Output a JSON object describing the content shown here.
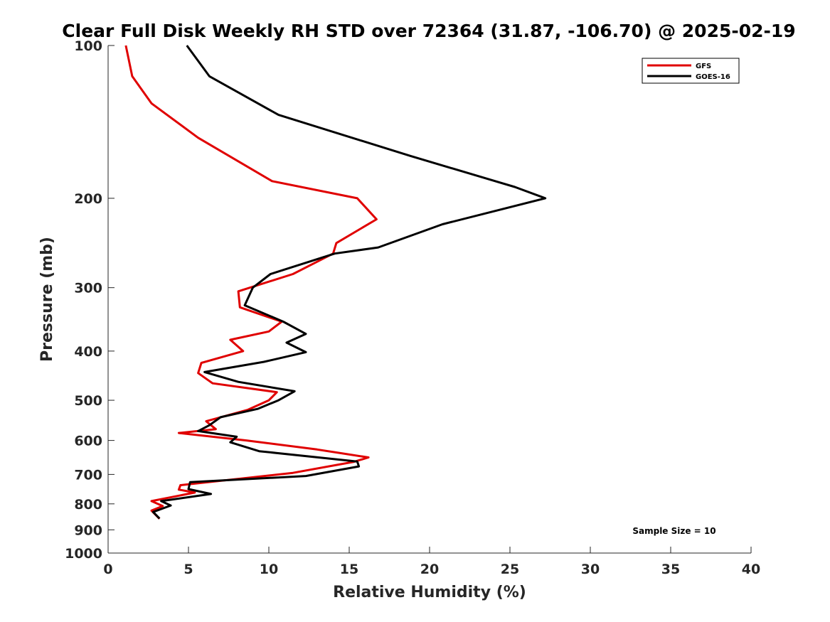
{
  "chart_data": {
    "type": "line",
    "title": "Clear Full Disk Weekly RH STD over 72364 (31.87, -106.70) @ 2025-02-19",
    "xlabel": "Relative Humidity (%)",
    "ylabel": "Pressure (mb)",
    "xlim": [
      0,
      40
    ],
    "ylim": [
      1000,
      100
    ],
    "y_scale": "log",
    "x_ticks": [
      "0",
      "5",
      "10",
      "15",
      "20",
      "25",
      "30",
      "35",
      "40"
    ],
    "y_ticks": [
      "100",
      "200",
      "300",
      "400",
      "500",
      "600",
      "700",
      "800",
      "900",
      "1000"
    ],
    "grid": false,
    "legend_position": "top-right",
    "annotation": "Sample Size = 10",
    "series": [
      {
        "name": "GFS",
        "color": "#e00000",
        "x": [
          1.1,
          1.5,
          2.7,
          5.6,
          10.2,
          15.5,
          16.7,
          14.2,
          14.0,
          11.5,
          8.1,
          8.2,
          10.8,
          10.0,
          7.6,
          8.4,
          5.8,
          5.6,
          6.5,
          10.5,
          10.0,
          8.7,
          6.1,
          6.7,
          4.4,
          8.6,
          13.0,
          16.2,
          15.3,
          11.5,
          4.5,
          4.4,
          5.4,
          2.7,
          3.4,
          2.7,
          3.2
        ],
        "y": [
          100,
          115,
          130,
          152,
          185,
          200,
          220,
          245,
          257,
          282,
          305,
          328,
          350,
          366,
          380,
          400,
          422,
          442,
          463,
          482,
          500,
          522,
          550,
          570,
          580,
          600,
          625,
          648,
          661,
          695,
          735,
          750,
          760,
          790,
          808,
          825,
          856
        ]
      },
      {
        "name": "GOES-16",
        "color": "#000000",
        "x": [
          4.9,
          6.3,
          10.6,
          18.8,
          25.3,
          27.2,
          20.8,
          16.8,
          14.1,
          10.1,
          9.0,
          8.5,
          10.9,
          12.3,
          11.1,
          12.3,
          9.7,
          6.0,
          8.1,
          11.6,
          10.6,
          9.3,
          7.0,
          6.3,
          5.6,
          8.0,
          7.6,
          9.4,
          15.5,
          15.6,
          12.3,
          5.1,
          5.0,
          6.4,
          3.3,
          3.9,
          2.8,
          3.2
        ],
        "y": [
          100,
          115,
          137,
          165,
          190,
          200,
          225,
          250,
          257,
          282,
          300,
          325,
          350,
          370,
          385,
          402,
          420,
          440,
          460,
          480,
          500,
          520,
          540,
          560,
          575,
          590,
          605,
          630,
          660,
          675,
          705,
          725,
          748,
          765,
          790,
          806,
          830,
          855
        ]
      }
    ]
  }
}
